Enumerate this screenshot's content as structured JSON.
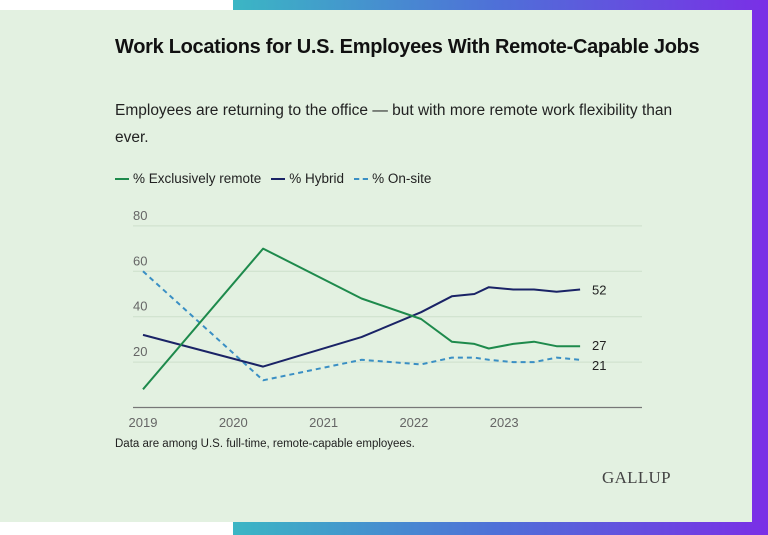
{
  "chart_data": {
    "type": "line",
    "title": "Work Locations for U.S. Employees With Remote-Capable Jobs",
    "subtitle": "Employees are returning to the office — but with more remote work flexibility than ever.",
    "xlabel": "",
    "ylabel": "",
    "xlim": [
      2019,
      2024.3
    ],
    "ylim": [
      0,
      80
    ],
    "x_ticks": [
      "2019",
      "2020",
      "2021",
      "2022",
      "2023"
    ],
    "y_ticks": [
      20,
      40,
      60,
      80
    ],
    "grid": "horizontal",
    "legend": "top-left",
    "x": [
      2019.0,
      2020.33,
      2021.42,
      2022.08,
      2022.42,
      2022.67,
      2022.83,
      2023.1,
      2023.33,
      2023.58,
      2023.84
    ],
    "series": [
      {
        "name": "% Exclusively remote",
        "color": "#1e8a4c",
        "style": "solid",
        "values": [
          8,
          70,
          48,
          39,
          29,
          28,
          26,
          28,
          29,
          27,
          27
        ],
        "end_label": "27"
      },
      {
        "name": "% Hybrid",
        "color": "#1a2366",
        "style": "solid",
        "values": [
          32,
          18,
          31,
          42,
          49,
          50,
          53,
          52,
          52,
          51,
          52
        ],
        "end_label": "52"
      },
      {
        "name": "% On-site",
        "color": "#3a8fc4",
        "style": "dashed",
        "values": [
          60,
          12,
          21,
          19,
          22,
          22,
          21,
          20,
          20,
          22,
          21
        ],
        "end_label": "21"
      }
    ],
    "note": "Data are among U.S. full-time, remote-capable employees."
  },
  "brand": "GALLUP"
}
